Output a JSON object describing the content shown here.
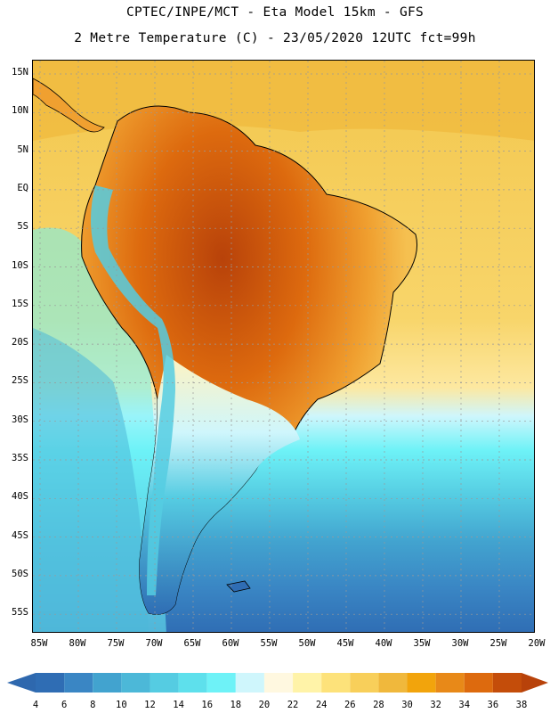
{
  "header": {
    "line1": "CPTEC/INPE/MCT -  Eta Model 15km - GFS",
    "line2": "2 Metre Temperature (C) - 23/05/2020 12UTC fct=99h"
  },
  "axes": {
    "lat_labels": [
      "15N",
      "10N",
      "5N",
      "EQ",
      "5S",
      "10S",
      "15S",
      "20S",
      "25S",
      "30S",
      "35S",
      "40S",
      "45S",
      "50S",
      "55S"
    ],
    "lon_labels": [
      "85W",
      "80W",
      "75W",
      "70W",
      "65W",
      "60W",
      "55W",
      "50W",
      "45W",
      "40W",
      "35W",
      "30W",
      "25W",
      "20W"
    ]
  },
  "colorbar": {
    "labels": [
      "4",
      "6",
      "8",
      "10",
      "12",
      "14",
      "16",
      "18",
      "20",
      "22",
      "24",
      "26",
      "28",
      "30",
      "32",
      "34",
      "36",
      "38"
    ],
    "colors": [
      "#2f6db4",
      "#3a86c4",
      "#42a3cf",
      "#4cb8d8",
      "#55cce2",
      "#5ee0ec",
      "#6ef2f7",
      "#cff6fc",
      "#fff8e0",
      "#fff3a8",
      "#fde27a",
      "#f8cf5a",
      "#f0b83c",
      "#f2a40c",
      "#e88918",
      "#dd6a0e",
      "#c44d0a"
    ],
    "under_color": "#2e68ae",
    "over_color": "#b8420a"
  }
}
